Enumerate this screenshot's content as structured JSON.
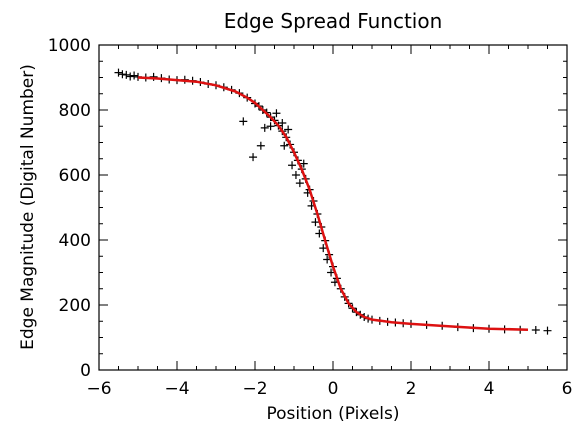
{
  "chart_data": {
    "type": "scatter",
    "title": "Edge Spread Function",
    "xlabel": "Position (Pixels)",
    "ylabel": "Edge Magnitude (Digital Number)",
    "xlim": [
      -6,
      6
    ],
    "ylim": [
      0,
      1000
    ],
    "x_ticks": [
      "−6",
      "−4",
      "−2",
      "0",
      "2",
      "4",
      "6"
    ],
    "y_ticks": [
      "0",
      "200",
      "400",
      "600",
      "800",
      "1000"
    ],
    "grid": false,
    "legend": "none",
    "series": [
      {
        "marker": "plus",
        "color": "#000000",
        "points": [
          [
            -5.5,
            915
          ],
          [
            -5.4,
            910
          ],
          [
            -5.3,
            908
          ],
          [
            -5.2,
            903
          ],
          [
            -5.1,
            906
          ],
          [
            -5.0,
            902
          ],
          [
            -4.8,
            900
          ],
          [
            -4.6,
            902
          ],
          [
            -4.4,
            898
          ],
          [
            -4.2,
            894
          ],
          [
            -4.0,
            892
          ],
          [
            -3.8,
            893
          ],
          [
            -3.6,
            890
          ],
          [
            -3.4,
            886
          ],
          [
            -3.2,
            880
          ],
          [
            -3.0,
            876
          ],
          [
            -2.8,
            870
          ],
          [
            -2.6,
            862
          ],
          [
            -2.4,
            852
          ],
          [
            -2.2,
            838
          ],
          [
            -2.0,
            820
          ],
          [
            -1.9,
            812
          ],
          [
            -1.8,
            800
          ],
          [
            -1.7,
            792
          ],
          [
            -1.6,
            778
          ],
          [
            -1.5,
            768
          ],
          [
            -1.4,
            752
          ],
          [
            -1.3,
            735
          ],
          [
            -1.2,
            716
          ],
          [
            -1.1,
            694
          ],
          [
            -1.0,
            670
          ],
          [
            -0.9,
            645
          ],
          [
            -0.8,
            618
          ],
          [
            -0.7,
            588
          ],
          [
            -0.6,
            555
          ],
          [
            -0.5,
            520
          ],
          [
            -0.4,
            480
          ],
          [
            -0.3,
            440
          ],
          [
            -0.2,
            398
          ],
          [
            -0.1,
            355
          ],
          [
            0.0,
            318
          ],
          [
            0.1,
            282
          ],
          [
            0.2,
            250
          ],
          [
            0.3,
            225
          ],
          [
            0.4,
            205
          ],
          [
            0.5,
            190
          ],
          [
            0.6,
            178
          ],
          [
            0.7,
            170
          ],
          [
            0.8,
            163
          ],
          [
            0.9,
            158
          ],
          [
            1.0,
            155
          ],
          [
            1.2,
            151
          ],
          [
            1.4,
            148
          ],
          [
            1.6,
            146
          ],
          [
            1.8,
            144
          ],
          [
            2.0,
            142
          ],
          [
            2.4,
            139
          ],
          [
            2.8,
            136
          ],
          [
            3.2,
            132
          ],
          [
            3.6,
            129
          ],
          [
            4.0,
            127
          ],
          [
            4.4,
            125
          ],
          [
            4.8,
            124
          ],
          [
            5.2,
            123
          ],
          [
            5.5,
            121
          ],
          [
            -1.85,
            690
          ],
          [
            -2.3,
            765
          ],
          [
            -1.75,
            745
          ],
          [
            -1.25,
            690
          ],
          [
            -1.05,
            630
          ],
          [
            -0.95,
            600
          ],
          [
            -0.85,
            575
          ],
          [
            -0.65,
            545
          ],
          [
            -0.55,
            505
          ],
          [
            -0.45,
            455
          ],
          [
            -0.35,
            420
          ],
          [
            -0.25,
            375
          ],
          [
            -0.15,
            340
          ],
          [
            -0.05,
            300
          ],
          [
            0.05,
            270
          ],
          [
            -1.6,
            750
          ],
          [
            -1.45,
            790
          ],
          [
            -1.3,
            760
          ],
          [
            -1.15,
            740
          ],
          [
            -0.75,
            635
          ],
          [
            -2.05,
            655
          ]
        ]
      },
      {
        "marker": "line",
        "color": "#dd1111",
        "points": [
          [
            -5.0,
            900
          ],
          [
            -4.5,
            897
          ],
          [
            -4.0,
            892
          ],
          [
            -3.5,
            887
          ],
          [
            -3.0,
            876
          ],
          [
            -2.5,
            857
          ],
          [
            -2.2,
            838
          ],
          [
            -2.0,
            822
          ],
          [
            -1.8,
            800
          ],
          [
            -1.6,
            778
          ],
          [
            -1.4,
            752
          ],
          [
            -1.2,
            717
          ],
          [
            -1.0,
            670
          ],
          [
            -0.8,
            617
          ],
          [
            -0.6,
            555
          ],
          [
            -0.4,
            480
          ],
          [
            -0.2,
            398
          ],
          [
            0.0,
            318
          ],
          [
            0.2,
            250
          ],
          [
            0.4,
            205
          ],
          [
            0.6,
            178
          ],
          [
            0.8,
            163
          ],
          [
            1.0,
            155
          ],
          [
            1.5,
            147
          ],
          [
            2.0,
            142
          ],
          [
            3.0,
            134
          ],
          [
            4.0,
            127
          ],
          [
            5.0,
            124
          ]
        ]
      }
    ]
  }
}
